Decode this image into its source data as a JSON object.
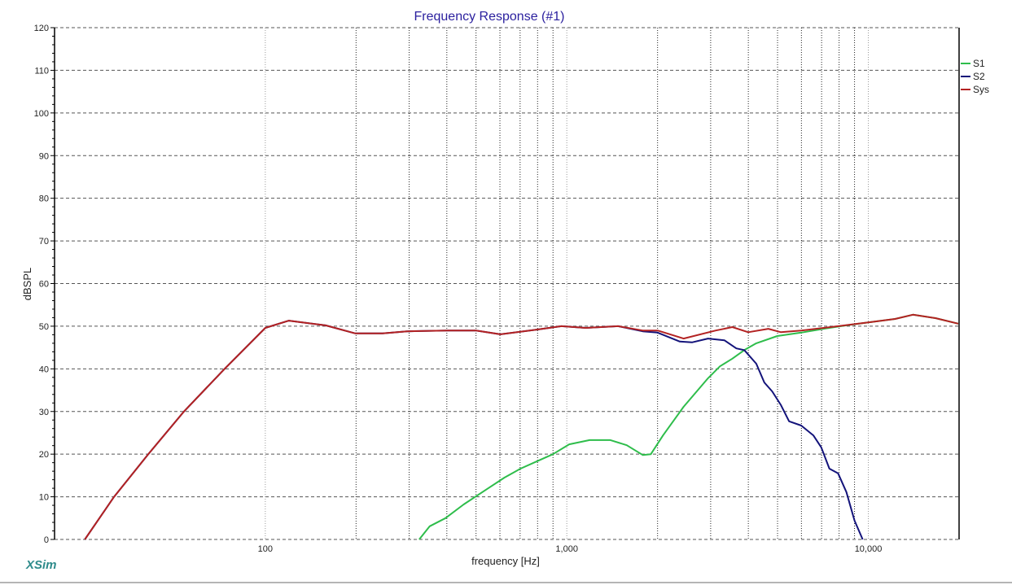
{
  "app": {
    "brand": "XSim"
  },
  "chart": {
    "title": "Frequency Response (#1)",
    "xlabel": "frequency [Hz]",
    "ylabel": "dBSPL",
    "x_tick_labels": [
      "100",
      "1,000",
      "10,000"
    ],
    "y_tick_labels": [
      "0",
      "10",
      "20",
      "30",
      "40",
      "50",
      "60",
      "70",
      "80",
      "90",
      "100",
      "110",
      "120"
    ]
  },
  "legend": {
    "items": [
      {
        "label": "S1",
        "color": "#2ebd4b"
      },
      {
        "label": "S2",
        "color": "#13137a"
      },
      {
        "label": "Sys",
        "color": "#b32222"
      }
    ]
  },
  "chart_data": {
    "type": "line",
    "title": "Frequency Response (#1)",
    "xlabel": "frequency [Hz]",
    "ylabel": "dBSPL",
    "xscale": "log",
    "xlim": [
      20,
      20000
    ],
    "ylim": [
      0,
      120
    ],
    "x_ticks": [
      100,
      1000,
      10000
    ],
    "y_ticks": [
      0,
      10,
      20,
      30,
      40,
      50,
      60,
      70,
      80,
      90,
      100,
      110,
      120
    ],
    "grid": true,
    "legend_position": "right",
    "series": [
      {
        "name": "S1",
        "color": "#2ebd4b",
        "points": [
          [
            324,
            0
          ],
          [
            351,
            3.1
          ],
          [
            396,
            5.0
          ],
          [
            455,
            8.2
          ],
          [
            549,
            12.0
          ],
          [
            621,
            14.5
          ],
          [
            702,
            16.6
          ],
          [
            795,
            18.3
          ],
          [
            900,
            20.0
          ],
          [
            1018,
            22.3
          ],
          [
            1190,
            23.3
          ],
          [
            1395,
            23.3
          ],
          [
            1580,
            22.1
          ],
          [
            1785,
            19.8
          ],
          [
            1900,
            20.0
          ],
          [
            2085,
            24.4
          ],
          [
            2440,
            31.1
          ],
          [
            2940,
            37.8
          ],
          [
            3220,
            40.6
          ],
          [
            3540,
            42.4
          ],
          [
            3880,
            44.4
          ],
          [
            4250,
            46.0
          ],
          [
            4990,
            47.7
          ],
          [
            5990,
            48.5
          ],
          [
            7430,
            49.6
          ],
          [
            8460,
            50.2
          ],
          [
            10000,
            50.9
          ],
          [
            12270,
            51.7
          ],
          [
            14060,
            52.7
          ],
          [
            16700,
            51.9
          ],
          [
            19870,
            50.6
          ]
        ]
      },
      {
        "name": "S2",
        "color": "#13137a",
        "points": [
          [
            25.2,
            0
          ],
          [
            31.5,
            10
          ],
          [
            40.9,
            20
          ],
          [
            53.7,
            30
          ],
          [
            73.3,
            40
          ],
          [
            100,
            49.6
          ],
          [
            119.7,
            51.3
          ],
          [
            158.5,
            50.2
          ],
          [
            199,
            48.3
          ],
          [
            245,
            48.3
          ],
          [
            295,
            48.8
          ],
          [
            402,
            49.0
          ],
          [
            500,
            49.0
          ],
          [
            602,
            48.1
          ],
          [
            795,
            49.2
          ],
          [
            960,
            50.0
          ],
          [
            1155,
            49.6
          ],
          [
            1480,
            50.0
          ],
          [
            1785,
            48.8
          ],
          [
            2000,
            48.5
          ],
          [
            2370,
            46.4
          ],
          [
            2600,
            46.2
          ],
          [
            2940,
            47.1
          ],
          [
            3330,
            46.7
          ],
          [
            3650,
            44.8
          ],
          [
            3880,
            44.4
          ],
          [
            4250,
            41.2
          ],
          [
            4520,
            36.8
          ],
          [
            4800,
            34.7
          ],
          [
            5130,
            31.5
          ],
          [
            5460,
            27.7
          ],
          [
            5990,
            26.7
          ],
          [
            6570,
            24.4
          ],
          [
            6980,
            21.6
          ],
          [
            7430,
            16.6
          ],
          [
            7940,
            15.5
          ],
          [
            8460,
            11.1
          ],
          [
            9000,
            4.4
          ],
          [
            9580,
            0
          ]
        ]
      },
      {
        "name": "Sys",
        "color": "#b32222",
        "points": [
          [
            25.2,
            0
          ],
          [
            31.5,
            10
          ],
          [
            40.9,
            20
          ],
          [
            53.7,
            30
          ],
          [
            73.3,
            40
          ],
          [
            100,
            49.6
          ],
          [
            119.7,
            51.3
          ],
          [
            158.5,
            50.2
          ],
          [
            199,
            48.3
          ],
          [
            245,
            48.3
          ],
          [
            295,
            48.8
          ],
          [
            402,
            49.0
          ],
          [
            500,
            49.0
          ],
          [
            602,
            48.1
          ],
          [
            795,
            49.2
          ],
          [
            960,
            50.0
          ],
          [
            1155,
            49.6
          ],
          [
            1480,
            50.0
          ],
          [
            1785,
            49.0
          ],
          [
            2000,
            49.0
          ],
          [
            2440,
            47.1
          ],
          [
            3120,
            49.0
          ],
          [
            3540,
            49.8
          ],
          [
            3997,
            48.6
          ],
          [
            4660,
            49.4
          ],
          [
            5130,
            48.6
          ],
          [
            5990,
            49.0
          ],
          [
            7940,
            50.0
          ],
          [
            10000,
            50.9
          ],
          [
            12270,
            51.7
          ],
          [
            14060,
            52.7
          ],
          [
            16700,
            51.9
          ],
          [
            19870,
            50.6
          ]
        ]
      }
    ]
  }
}
